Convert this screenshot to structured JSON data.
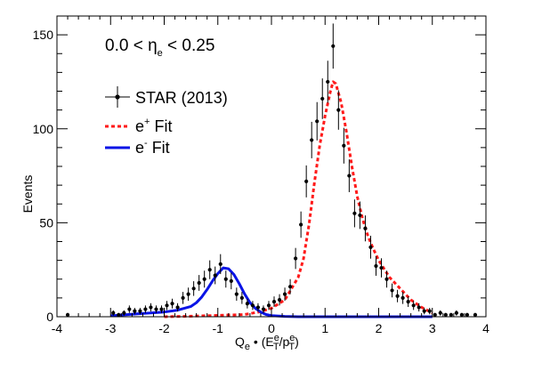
{
  "chart_data": {
    "type": "scatter",
    "annotation": {
      "lead": "0.0 < η",
      "sub": "e",
      "trail": " < 0.25"
    },
    "xlabel": {
      "q": "Q",
      "q_sub": "e",
      "dot": " • (E",
      "e_sup": "e",
      "e_sub": "T",
      "slash": "/p",
      "p_sup": "e",
      "p_sub": "T",
      "close": ")"
    },
    "ylabel": "Events",
    "xlim": [
      -4,
      4
    ],
    "ylim": [
      0,
      160
    ],
    "x_ticks": [
      -4,
      -3,
      -2,
      -1,
      0,
      1,
      2,
      3,
      4
    ],
    "y_ticks": [
      0,
      50,
      100,
      150
    ],
    "legend": {
      "placement": "upper-left",
      "entries": [
        {
          "key": "data",
          "label": "STAR (2013)",
          "color": "#000000",
          "style": "marker-errorbar"
        },
        {
          "key": "pos",
          "label": "e",
          "sup": "+",
          "tail": " Fit",
          "color": "#ff1a1a",
          "style": "dashed"
        },
        {
          "key": "neg",
          "label": "e",
          "sup": "-",
          "tail": " Fit",
          "color": "#0a14e6",
          "style": "solid"
        }
      ]
    },
    "series": [
      {
        "name": "STAR (2013)",
        "kind": "points",
        "color": "#000000",
        "x": [
          -3.8,
          -2.95,
          -2.85,
          -2.75,
          -2.65,
          -2.55,
          -2.45,
          -2.35,
          -2.25,
          -2.15,
          -2.05,
          -1.95,
          -1.85,
          -1.75,
          -1.65,
          -1.55,
          -1.45,
          -1.35,
          -1.25,
          -1.15,
          -1.05,
          -0.95,
          -0.85,
          -0.75,
          -0.65,
          -0.55,
          -0.45,
          -0.35,
          -0.25,
          -0.15,
          -0.05,
          0.05,
          0.15,
          0.25,
          0.35,
          0.45,
          0.55,
          0.65,
          0.75,
          0.85,
          0.95,
          1.05,
          1.15,
          1.25,
          1.35,
          1.45,
          1.55,
          1.65,
          1.75,
          1.85,
          1.95,
          2.05,
          2.15,
          2.25,
          2.35,
          2.45,
          2.55,
          2.65,
          2.75,
          2.85,
          2.95,
          3.05,
          3.15,
          3.25,
          3.35,
          3.45,
          3.55,
          3.65,
          3.8
        ],
        "y": [
          1,
          2,
          1,
          2,
          4,
          3,
          3,
          4,
          5,
          4,
          4,
          6,
          7,
          5,
          10,
          12,
          15,
          18,
          20,
          25,
          22,
          28,
          20,
          19,
          12,
          10,
          7,
          6,
          5,
          4,
          6,
          8,
          9,
          12,
          16,
          31,
          49,
          72,
          94,
          104,
          116,
          125,
          144,
          110,
          91,
          75,
          55,
          54,
          47,
          37,
          27,
          26,
          20,
          14,
          11,
          10,
          8,
          6,
          5,
          3,
          3,
          1,
          2,
          1,
          1,
          2,
          1,
          1,
          1
        ],
        "yerr": [
          1,
          1.4,
          1,
          1.4,
          2,
          1.7,
          1.7,
          2,
          2.2,
          2,
          2,
          2.4,
          2.6,
          2.2,
          3.2,
          3.5,
          3.9,
          4.2,
          4.5,
          5,
          4.7,
          5.3,
          4.5,
          4.4,
          3.5,
          3.2,
          2.6,
          2.4,
          2.2,
          2,
          2.4,
          2.8,
          3,
          3.5,
          4,
          5.6,
          7,
          8.5,
          9.7,
          10.2,
          10.8,
          11.2,
          12,
          10.5,
          9.5,
          8.7,
          7.4,
          7.3,
          6.9,
          6.1,
          5.2,
          5.1,
          4.5,
          3.7,
          3.3,
          3.2,
          2.8,
          2.4,
          2.2,
          1.7,
          1.7,
          1,
          1.4,
          1,
          1,
          1.4,
          1,
          1,
          1
        ]
      },
      {
        "name": "e+ Fit",
        "kind": "curve",
        "color": "#ff1a1a",
        "dash": true,
        "x": [
          -2.0,
          -1.5,
          -1.0,
          -0.5,
          -0.25,
          0.0,
          0.25,
          0.5,
          0.6,
          0.7,
          0.8,
          0.9,
          1.0,
          1.1,
          1.15,
          1.2,
          1.3,
          1.4,
          1.5,
          1.6,
          1.7,
          1.8,
          1.9,
          2.0,
          2.2,
          2.4,
          2.6,
          2.8,
          3.0
        ],
        "y": [
          0,
          0.3,
          0.7,
          1.2,
          2.4,
          4.5,
          9,
          21,
          31,
          49,
          71,
          91,
          107,
          120,
          125,
          124,
          114,
          98,
          80,
          64,
          52,
          43,
          36,
          30,
          21,
          15,
          9,
          5,
          2
        ]
      },
      {
        "name": "e- Fit",
        "kind": "curve",
        "color": "#0a14e6",
        "dash": false,
        "x": [
          -3.0,
          -2.75,
          -2.5,
          -2.25,
          -2.0,
          -1.75,
          -1.5,
          -1.4,
          -1.3,
          -1.2,
          -1.1,
          -1.0,
          -0.9,
          -0.8,
          -0.7,
          -0.6,
          -0.5,
          -0.4,
          -0.3,
          -0.2,
          -0.1,
          0.0,
          0.25,
          0.5,
          1.0,
          2.0,
          3.0
        ],
        "y": [
          0.5,
          1,
          1.5,
          2,
          2.5,
          3.5,
          5.5,
          7.5,
          10.5,
          14.5,
          19,
          23,
          26,
          25.5,
          22.5,
          17.5,
          12,
          7.5,
          4.5,
          2.5,
          1.2,
          0.6,
          0.2,
          0,
          0,
          0,
          0
        ]
      }
    ]
  }
}
